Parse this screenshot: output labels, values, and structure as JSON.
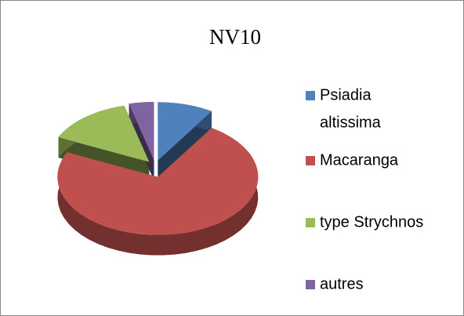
{
  "chart_data": {
    "type": "pie3d",
    "title": "NV10",
    "categories": [
      "Psiadia altissima",
      "Macaranga",
      "type Strychnos",
      "autres"
    ],
    "legend_lines": [
      [
        "Psiadia",
        "altissima"
      ],
      [
        "Macaranga"
      ],
      [
        "type Strychnos"
      ],
      [
        "autres"
      ]
    ],
    "values": [
      9,
      73,
      14,
      4
    ],
    "colors": [
      "#4f81bd",
      "#c0504d",
      "#9bbb59",
      "#8064a2"
    ],
    "legend": "right"
  }
}
